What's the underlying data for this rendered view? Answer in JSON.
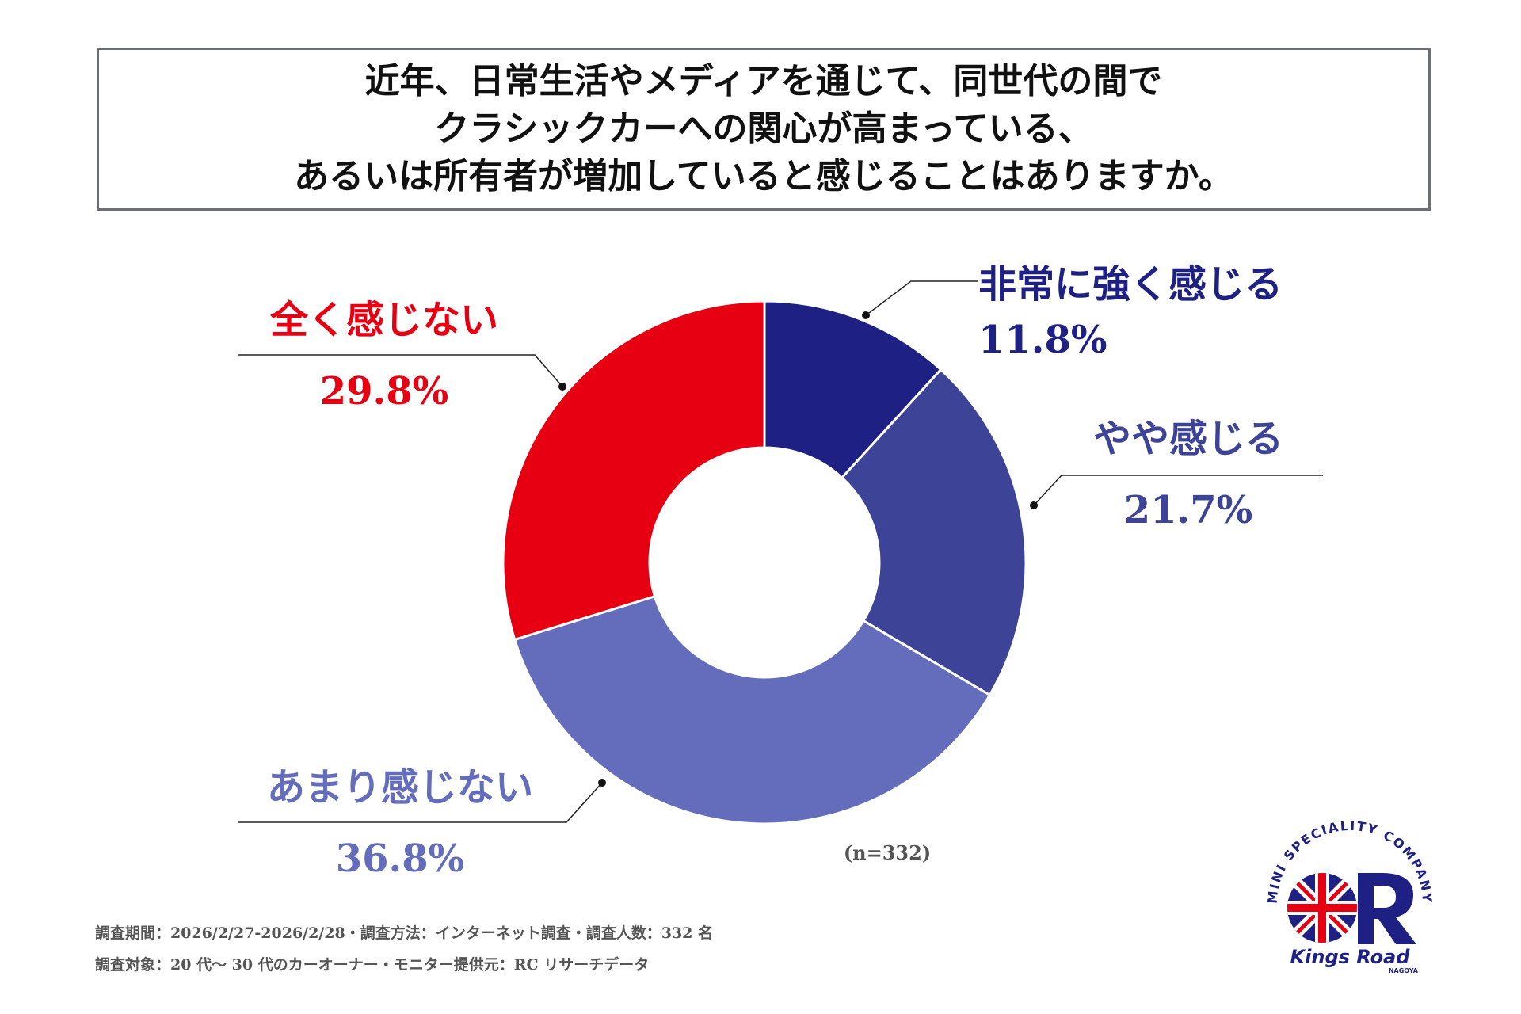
{
  "title": {
    "lines": [
      "近年、日常生活やメディアを通じて、同世代の間で",
      "クラシックカーへの関心が高まっている、",
      "あるいは所有者が増加していると感じることはありますか。"
    ]
  },
  "chart_data": {
    "type": "pie",
    "style": "donut",
    "question": "近年、日常生活やメディアを通じて、同世代の間でクラシックカーへの関心が高まっている、あるいは所有者が増加していると感じることはありますか。",
    "slices": [
      {
        "label": "非常に強く感じる",
        "value": 11.8,
        "value_label": "11.8%",
        "color": "#1e2083"
      },
      {
        "label": "やや感じる",
        "value": 21.7,
        "value_label": "21.7%",
        "color": "#3d4497"
      },
      {
        "label": "あまり感じない",
        "value": 36.8,
        "value_label": "36.8%",
        "color": "#646dbb"
      },
      {
        "label": "全く感じない",
        "value": 29.8,
        "value_label": "29.8%",
        "color": "#e60012"
      }
    ],
    "sample_size": "(n=332)"
  },
  "footnotes": [
    "調査期間：2026/2/27-2026/2/28・調査方法：インターネット調査・調査人数：332 名",
    "調査対象：20 代〜 30 代のカーオーナー・モニター提供元：RC リサーチデータ"
  ],
  "logo": {
    "arc_text": "MINI SPECIALITY COMPANY",
    "brand": "Kings Road",
    "sub": "NAGOYA"
  }
}
